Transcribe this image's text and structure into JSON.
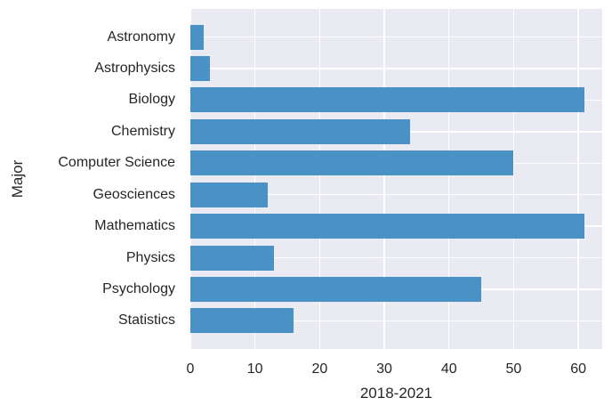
{
  "chart_data": {
    "type": "bar",
    "orientation": "horizontal",
    "title": "",
    "xlabel": "2018-2021",
    "ylabel": "Major",
    "categories": [
      "Astronomy",
      "Astrophysics",
      "Biology",
      "Chemistry",
      "Computer Science",
      "Geosciences",
      "Mathematics",
      "Physics",
      "Psychology",
      "Statistics"
    ],
    "values": [
      2,
      3,
      61,
      34,
      50,
      12,
      61,
      13,
      45,
      16
    ],
    "xticks": [
      0,
      10,
      20,
      30,
      40,
      50,
      60
    ],
    "xlim": [
      0,
      63.7
    ],
    "grid": true,
    "legend": false,
    "style": "seaborn-darkgrid",
    "colors": {
      "bar": "#4a91c5",
      "plot_background": "#eaeaf2",
      "gridline": "#ffffff",
      "text": "#262626",
      "figure_background": "#ffffff"
    }
  }
}
